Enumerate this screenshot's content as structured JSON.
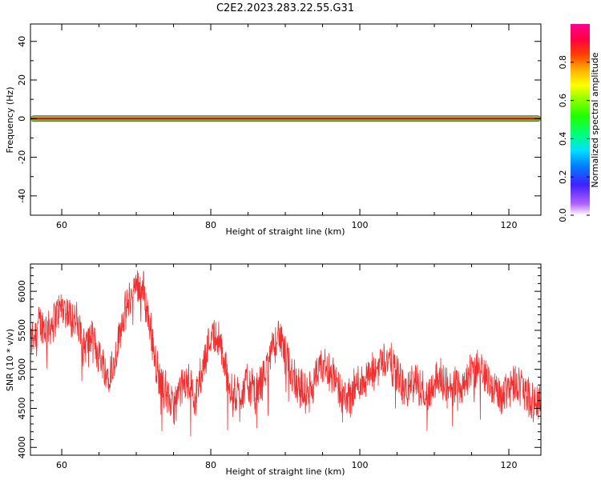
{
  "chart_data": [
    {
      "type": "spectrogram",
      "title": "C2E2.2023.283.22.55.G31",
      "xlabel": "Height of straight line (km)",
      "ylabel": "Frequency (Hz)",
      "xlim": [
        55.8,
        124.3
      ],
      "ylim": [
        -50,
        49
      ],
      "xticks": [
        60,
        80,
        100,
        120
      ],
      "yticks": [
        -40,
        -20,
        0,
        20,
        40
      ],
      "band": {
        "center_hz": 0,
        "x_start_km": 55.8,
        "x_end_km": 124.3,
        "outer_halfwidth_hz": 1.6,
        "mid_halfwidth_hz": 0.9,
        "inner_halfwidth_hz": 0.5,
        "outer_amplitude": 0.2,
        "mid_amplitude": 0.45,
        "inner_amplitude": 0.9
      },
      "colorbar": {
        "label": "Normalized spectral amplitude",
        "range": [
          0,
          1
        ],
        "ticks": [
          0.0,
          0.2,
          0.4,
          0.6,
          0.8
        ],
        "tick_labels": [
          "0.0",
          "0.2",
          "0.4",
          "0.6",
          "0.8"
        ]
      },
      "grid": false
    },
    {
      "type": "line",
      "xlabel": "Height of straight line (km)",
      "ylabel": "SNR (10 * v/v)",
      "xlim": [
        55.8,
        124.3
      ],
      "ylim": [
        3900,
        6350
      ],
      "xticks": [
        60,
        80,
        100,
        120
      ],
      "yticks": [
        4000,
        4500,
        5000,
        5500,
        6000
      ],
      "series": [
        {
          "color": "#f03030",
          "x": [
            55.8,
            57,
            58,
            59,
            60,
            61,
            62,
            63,
            64,
            65,
            66,
            67,
            68,
            69,
            70,
            71,
            72,
            73,
            74,
            75,
            76,
            77,
            78,
            79,
            80,
            81,
            82,
            83,
            84,
            85,
            86,
            87,
            88,
            89,
            90,
            91,
            92,
            93,
            94,
            95,
            96,
            97,
            98,
            99,
            100,
            101,
            102,
            103,
            104,
            105,
            106,
            107,
            108,
            109,
            110,
            111,
            112,
            113,
            114,
            115,
            116,
            117,
            118,
            119,
            120,
            121,
            122,
            123,
            124.3
          ],
          "y": [
            5350,
            5600,
            5500,
            5650,
            5800,
            5700,
            5600,
            5300,
            5400,
            5200,
            4950,
            5050,
            5600,
            5850,
            6100,
            6000,
            5450,
            4900,
            4700,
            4500,
            4750,
            4850,
            4650,
            5050,
            5450,
            5400,
            5000,
            4650,
            4700,
            4850,
            4650,
            4900,
            5150,
            5500,
            5150,
            4950,
            4750,
            4650,
            4850,
            5050,
            5000,
            4800,
            4600,
            4700,
            4850,
            4900,
            4950,
            5150,
            5100,
            4950,
            4700,
            4850,
            4800,
            4650,
            4850,
            4900,
            4700,
            4800,
            4850,
            4950,
            5000,
            4900,
            4750,
            4650,
            4800,
            4850,
            4750,
            4600,
            4600
          ]
        }
      ],
      "grid": false
    }
  ]
}
